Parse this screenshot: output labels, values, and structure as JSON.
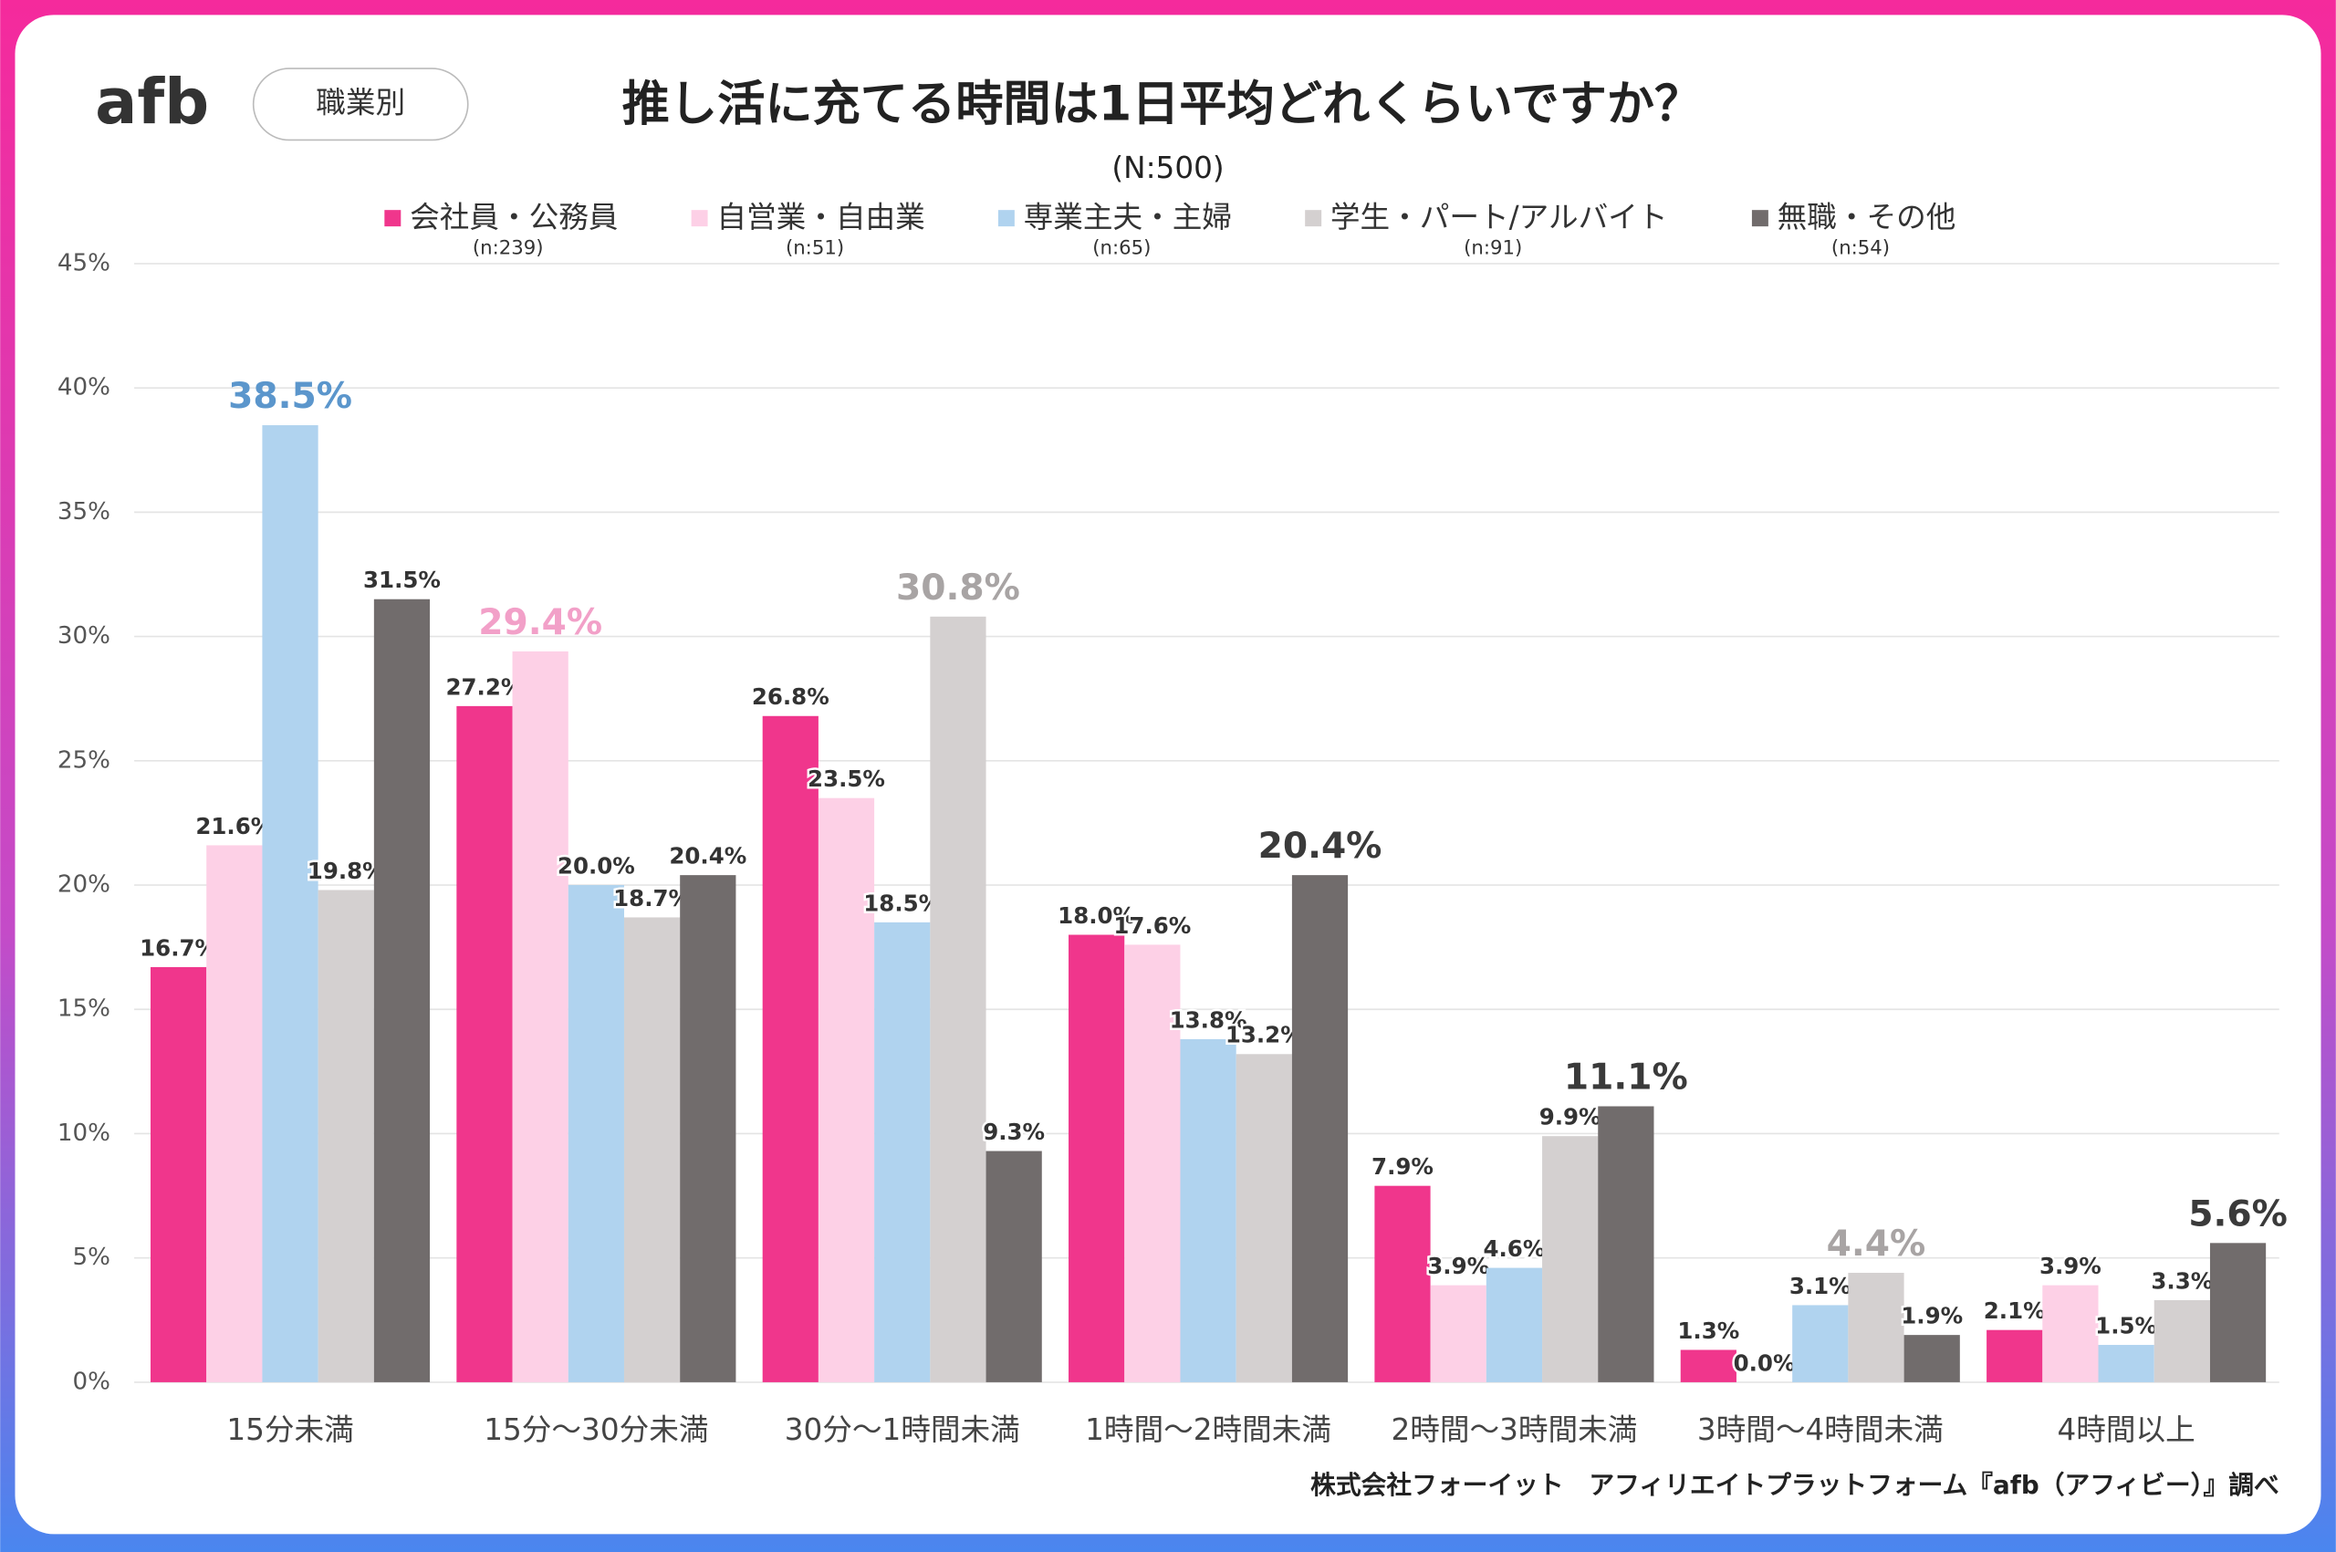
{
  "logo": "afb",
  "tag": "職業別",
  "chart_data": {
    "type": "bar",
    "title": "推し活に充てる時間は1日平均どれくらいですか？",
    "subtitle": "(N:500)",
    "source": "株式会社フォーイット　アフィリエイトプラットフォーム『afb（アフィビー）』調べ",
    "categories": [
      "15分未満",
      "15分～30分未満",
      "30分～1時間未満",
      "1時間～2時間未満",
      "2時間～3時間未満",
      "3時間～4時間未満",
      "4時間以上"
    ],
    "series": [
      {
        "name": "会社員・公務員",
        "note": "(n:239)",
        "color": "#f0368c",
        "highlight_color": "#e0307f",
        "values": [
          16.7,
          27.2,
          26.8,
          18.0,
          7.9,
          1.3,
          2.1
        ],
        "value_labels": [
          "16.7%",
          "27.2%",
          "26.8%",
          "18.0%",
          "7.9%",
          "1.3%",
          "2.1%"
        ]
      },
      {
        "name": "自営業・自由業",
        "note": "(n:51)",
        "color": "#fdd0e6",
        "highlight_color": "#f2a0c8",
        "values": [
          21.6,
          29.4,
          23.5,
          17.6,
          3.9,
          0.0,
          3.9
        ],
        "value_labels": [
          "21.6%",
          "29.4%",
          "23.5%",
          "17.6%",
          "3.9%",
          "0.0%",
          "3.9%"
        ]
      },
      {
        "name": "専業主夫・主婦",
        "note": "(n:65)",
        "color": "#b0d3ef",
        "highlight_color": "#5b96cc",
        "values": [
          38.5,
          20.0,
          18.5,
          13.8,
          4.6,
          3.1,
          1.5
        ],
        "value_labels": [
          "38.5%",
          "20.0%",
          "18.5%",
          "13.8%",
          "4.6%",
          "3.1%",
          "1.5%"
        ]
      },
      {
        "name": "学生・パート/アルバイト",
        "note": "(n:91)",
        "color": "#d4d0d0",
        "highlight_color": "#a8a4a4",
        "values": [
          19.8,
          18.7,
          30.8,
          13.2,
          9.9,
          4.4,
          3.3
        ],
        "value_labels": [
          "19.8%",
          "18.7%",
          "30.8%",
          "13.2%",
          "9.9%",
          "4.4%",
          "3.3%"
        ]
      },
      {
        "name": "無職・その他",
        "note": "(n:54)",
        "color": "#716c6c",
        "highlight_color": "#3a3a3a",
        "values": [
          31.5,
          20.4,
          9.3,
          20.4,
          11.1,
          1.9,
          5.6
        ],
        "value_labels": [
          "31.5%",
          "20.4%",
          "9.3%",
          "20.4%",
          "11.1%",
          "1.9%",
          "5.6%"
        ]
      }
    ],
    "ylim": [
      0,
      45
    ],
    "yticks": [
      {
        "value": 0,
        "label": "0%"
      },
      {
        "value": 5,
        "label": "5%"
      },
      {
        "value": 10,
        "label": "10%"
      },
      {
        "value": 15,
        "label": "15%"
      },
      {
        "value": 20,
        "label": "20%"
      },
      {
        "value": 25,
        "label": "25%"
      },
      {
        "value": 30,
        "label": "30%"
      },
      {
        "value": 35,
        "label": "35%"
      },
      {
        "value": 40,
        "label": "40%"
      },
      {
        "value": 45,
        "label": "45%"
      }
    ],
    "grid": true
  }
}
